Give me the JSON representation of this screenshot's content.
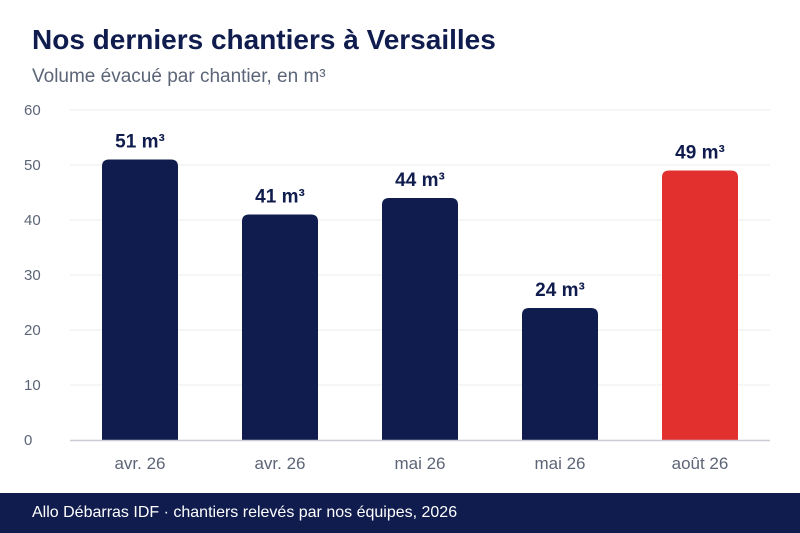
{
  "chart_data": {
    "type": "bar",
    "title": "Nos derniers chantiers à Versailles",
    "subtitle": "Volume évacué par chantier, en m³",
    "categories": [
      "avr. 26",
      "avr. 26",
      "mai 26",
      "mai 26",
      "août 26"
    ],
    "values": [
      51,
      41,
      44,
      24,
      49
    ],
    "data_labels": [
      "51 m³",
      "41 m³",
      "44 m³",
      "24 m³",
      "49 m³"
    ],
    "bar_colors": [
      "#0f1c4d",
      "#0f1c4d",
      "#0f1c4d",
      "#0f1c4d",
      "#e2302e"
    ],
    "ylim": [
      0,
      60
    ],
    "yticks": [
      0,
      10,
      20,
      30,
      40,
      50,
      60
    ],
    "grid": true,
    "legend": "none"
  },
  "colors": {
    "primary": "#0f1c4d",
    "highlight": "#e2302e",
    "muted_text": "#5c6577",
    "grid": "#ececf2"
  },
  "footer": {
    "text": "Allo Débarras IDF · chantiers relevés par nos équipes, 2026"
  }
}
